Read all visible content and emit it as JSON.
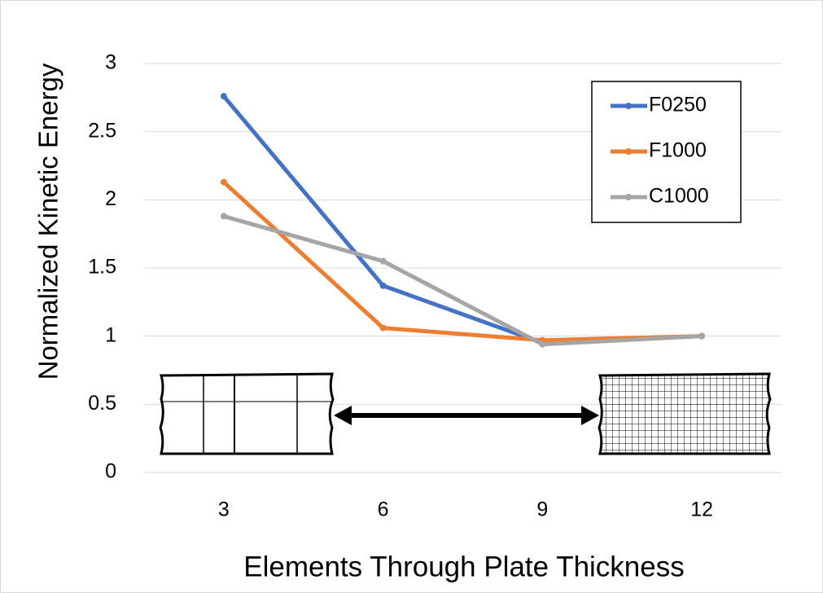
{
  "chart_data": {
    "type": "line",
    "y_label": "Normalized Kinetic Energy",
    "x_label": "Elements Through Plate Thickness",
    "categories": [
      "3",
      "6",
      "9",
      "12"
    ],
    "series": [
      {
        "name": "F0250",
        "color": "#4472c4",
        "values": [
          2.76,
          1.37,
          0.95,
          1.0
        ]
      },
      {
        "name": "F1000",
        "color": "#ed7d31",
        "values": [
          2.13,
          1.06,
          0.97,
          1.0
        ]
      },
      {
        "name": "C1000",
        "color": "#a5a5a5",
        "values": [
          1.88,
          1.55,
          0.94,
          1.0
        ]
      }
    ],
    "ylim": [
      0,
      3
    ],
    "yticks": [
      0,
      0.5,
      1,
      1.5,
      2,
      2.5,
      3
    ],
    "grid": true,
    "legend": "top-right"
  }
}
